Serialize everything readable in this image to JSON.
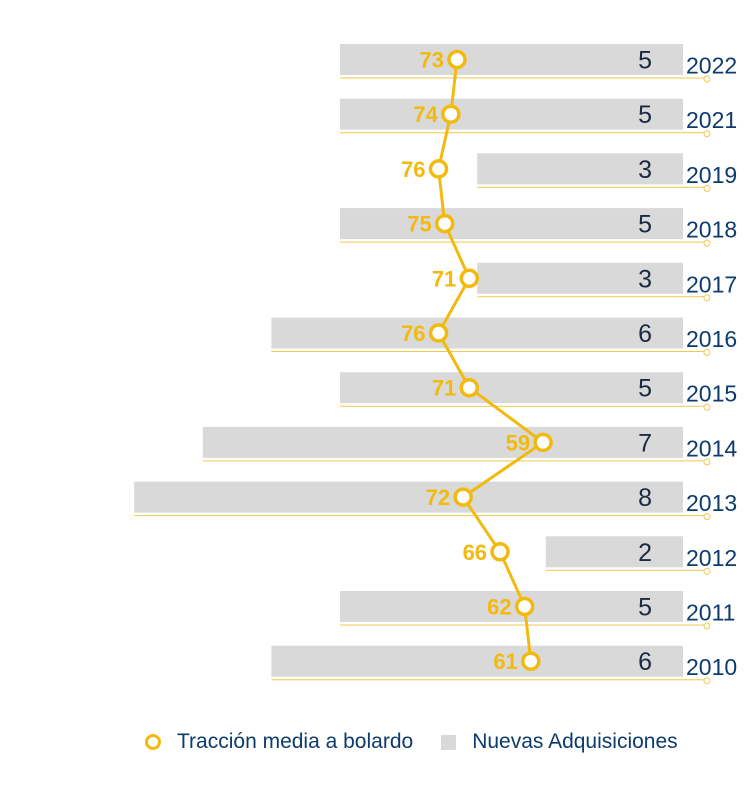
{
  "chart_data": {
    "type": "bar",
    "categories": [
      "2022",
      "2021",
      "2019",
      "2018",
      "2017",
      "2016",
      "2015",
      "2014",
      "2013",
      "2012",
      "2011",
      "2010"
    ],
    "series": [
      {
        "name": "Nuevas Adquisiciones",
        "type": "bar",
        "orientation": "horizontal",
        "values": [
          5,
          5,
          3,
          5,
          3,
          6,
          5,
          7,
          8,
          2,
          5,
          6
        ],
        "color": "#d9d9d9"
      },
      {
        "name": "Tracción media a bolardo",
        "type": "line",
        "values": [
          73,
          74,
          76,
          75,
          71,
          76,
          71,
          59,
          72,
          66,
          62,
          61
        ],
        "color": "#f2b90f"
      }
    ],
    "legend": "bottom"
  }
}
